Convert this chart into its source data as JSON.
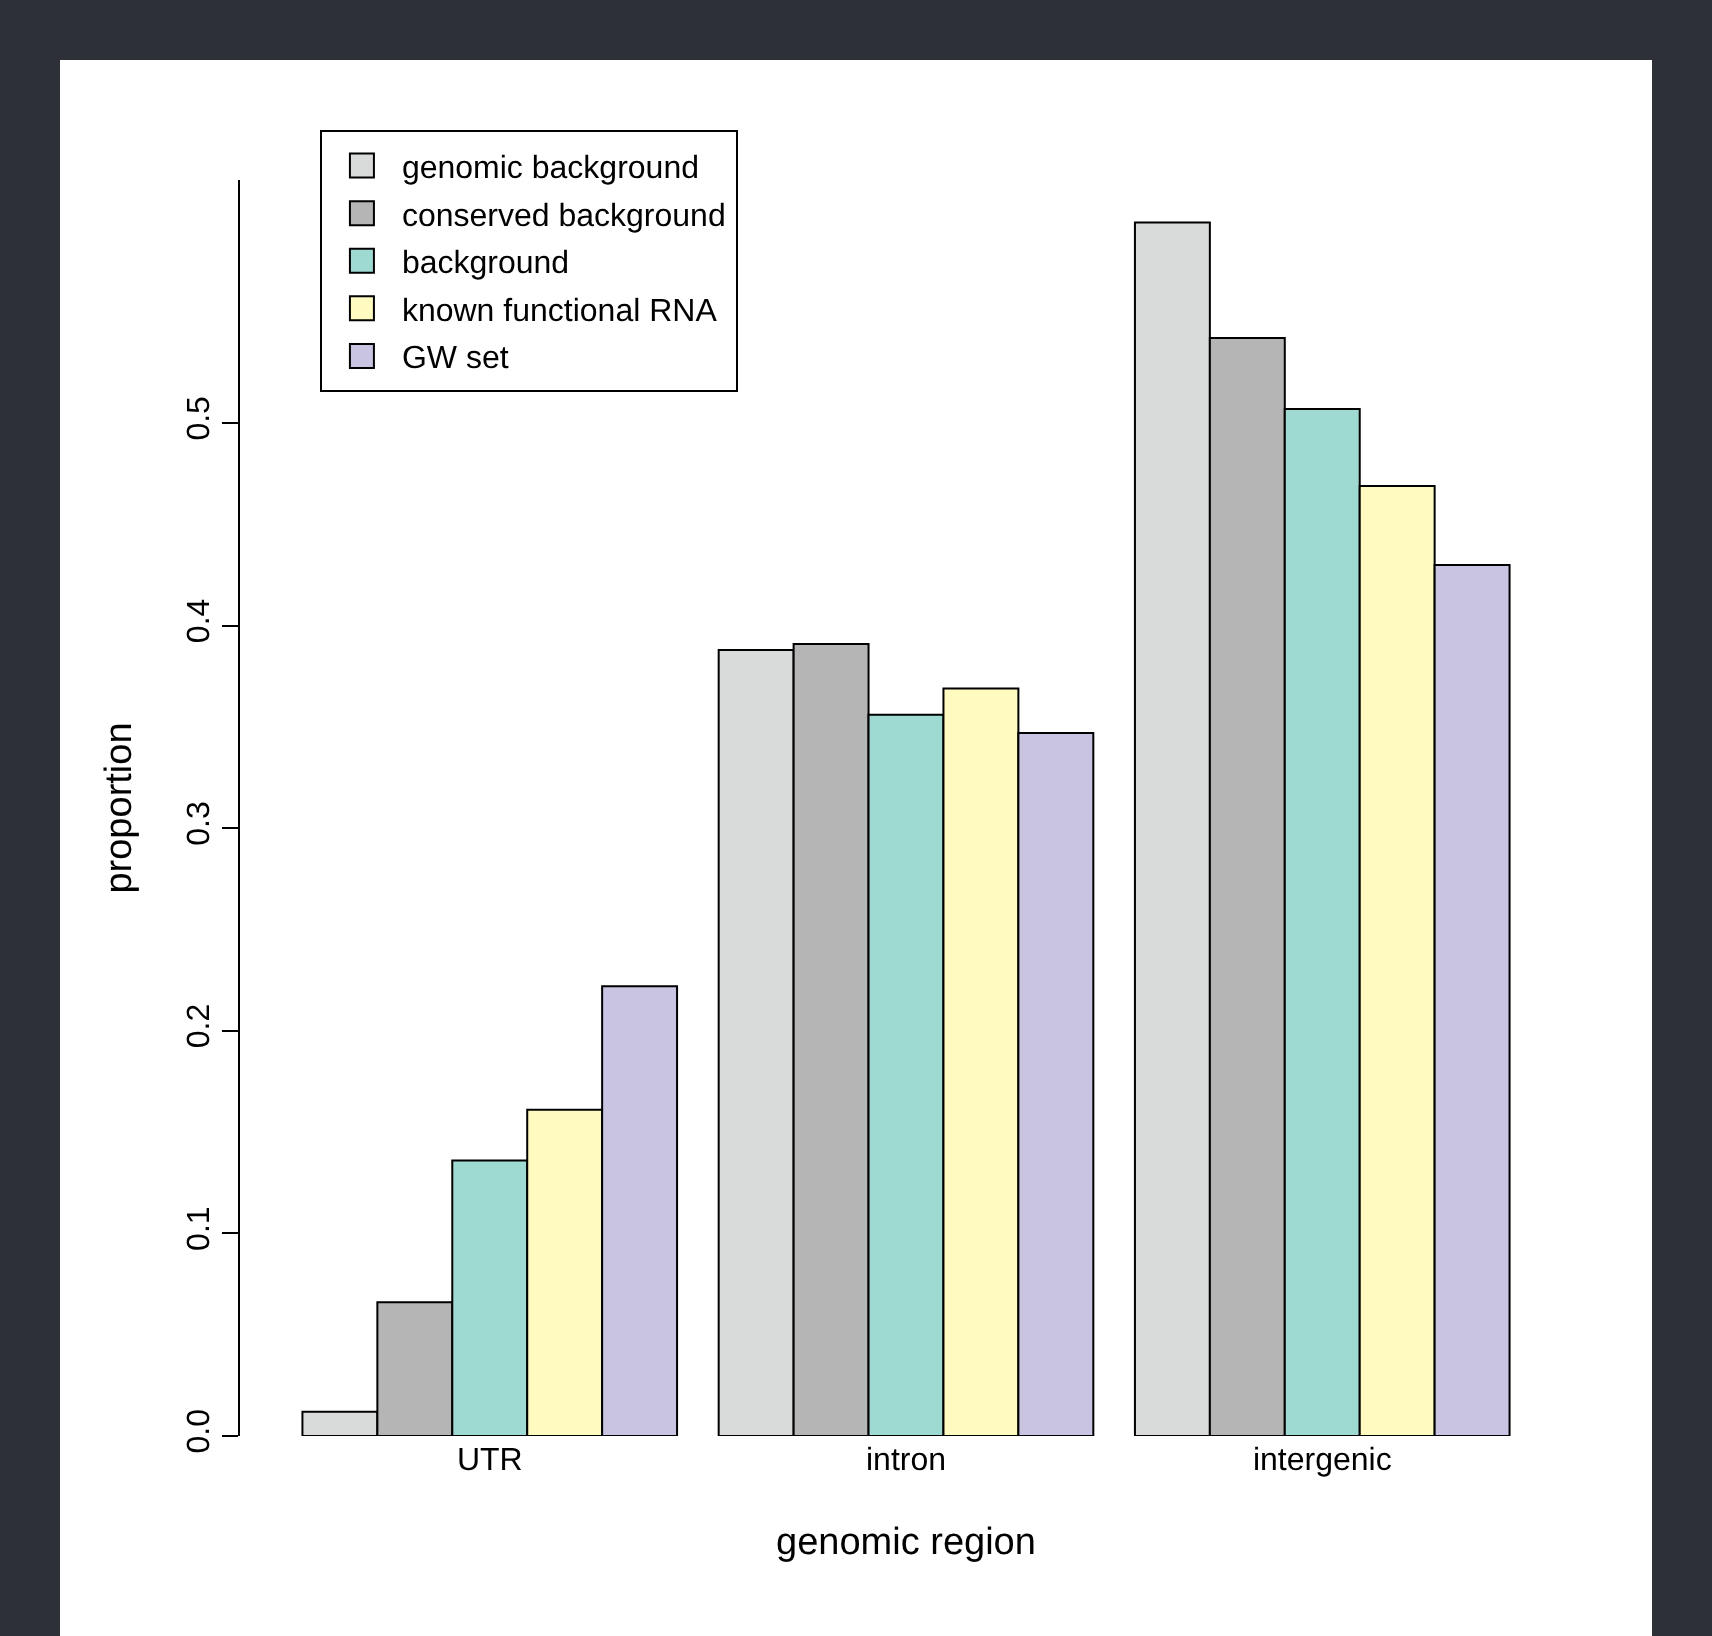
{
  "chart_data": {
    "type": "bar",
    "xlabel": "genomic region",
    "ylabel": "proportion",
    "categories": [
      "UTR",
      "intron",
      "intergenic"
    ],
    "series": [
      {
        "name": "genomic background",
        "color": "#d9dbda",
        "values": [
          0.012,
          0.388,
          0.599
        ]
      },
      {
        "name": "conserved background",
        "color": "#b5b5b5",
        "values": [
          0.066,
          0.391,
          0.542
        ]
      },
      {
        "name": "background",
        "color": "#9fdad2",
        "values": [
          0.136,
          0.356,
          0.507
        ]
      },
      {
        "name": "known functional RNA",
        "color": "#fefac0",
        "values": [
          0.161,
          0.369,
          0.469
        ]
      },
      {
        "name": "GW set",
        "color": "#c8c4e2",
        "values": [
          0.222,
          0.347,
          0.43
        ]
      }
    ],
    "ylim": [
      0,
      0.62
    ],
    "yticks": [
      {
        "value": 0,
        "label": "0.0"
      },
      0.1,
      0.2,
      0.3,
      0.4,
      0.5
    ],
    "grid": false,
    "legend": "top left"
  }
}
